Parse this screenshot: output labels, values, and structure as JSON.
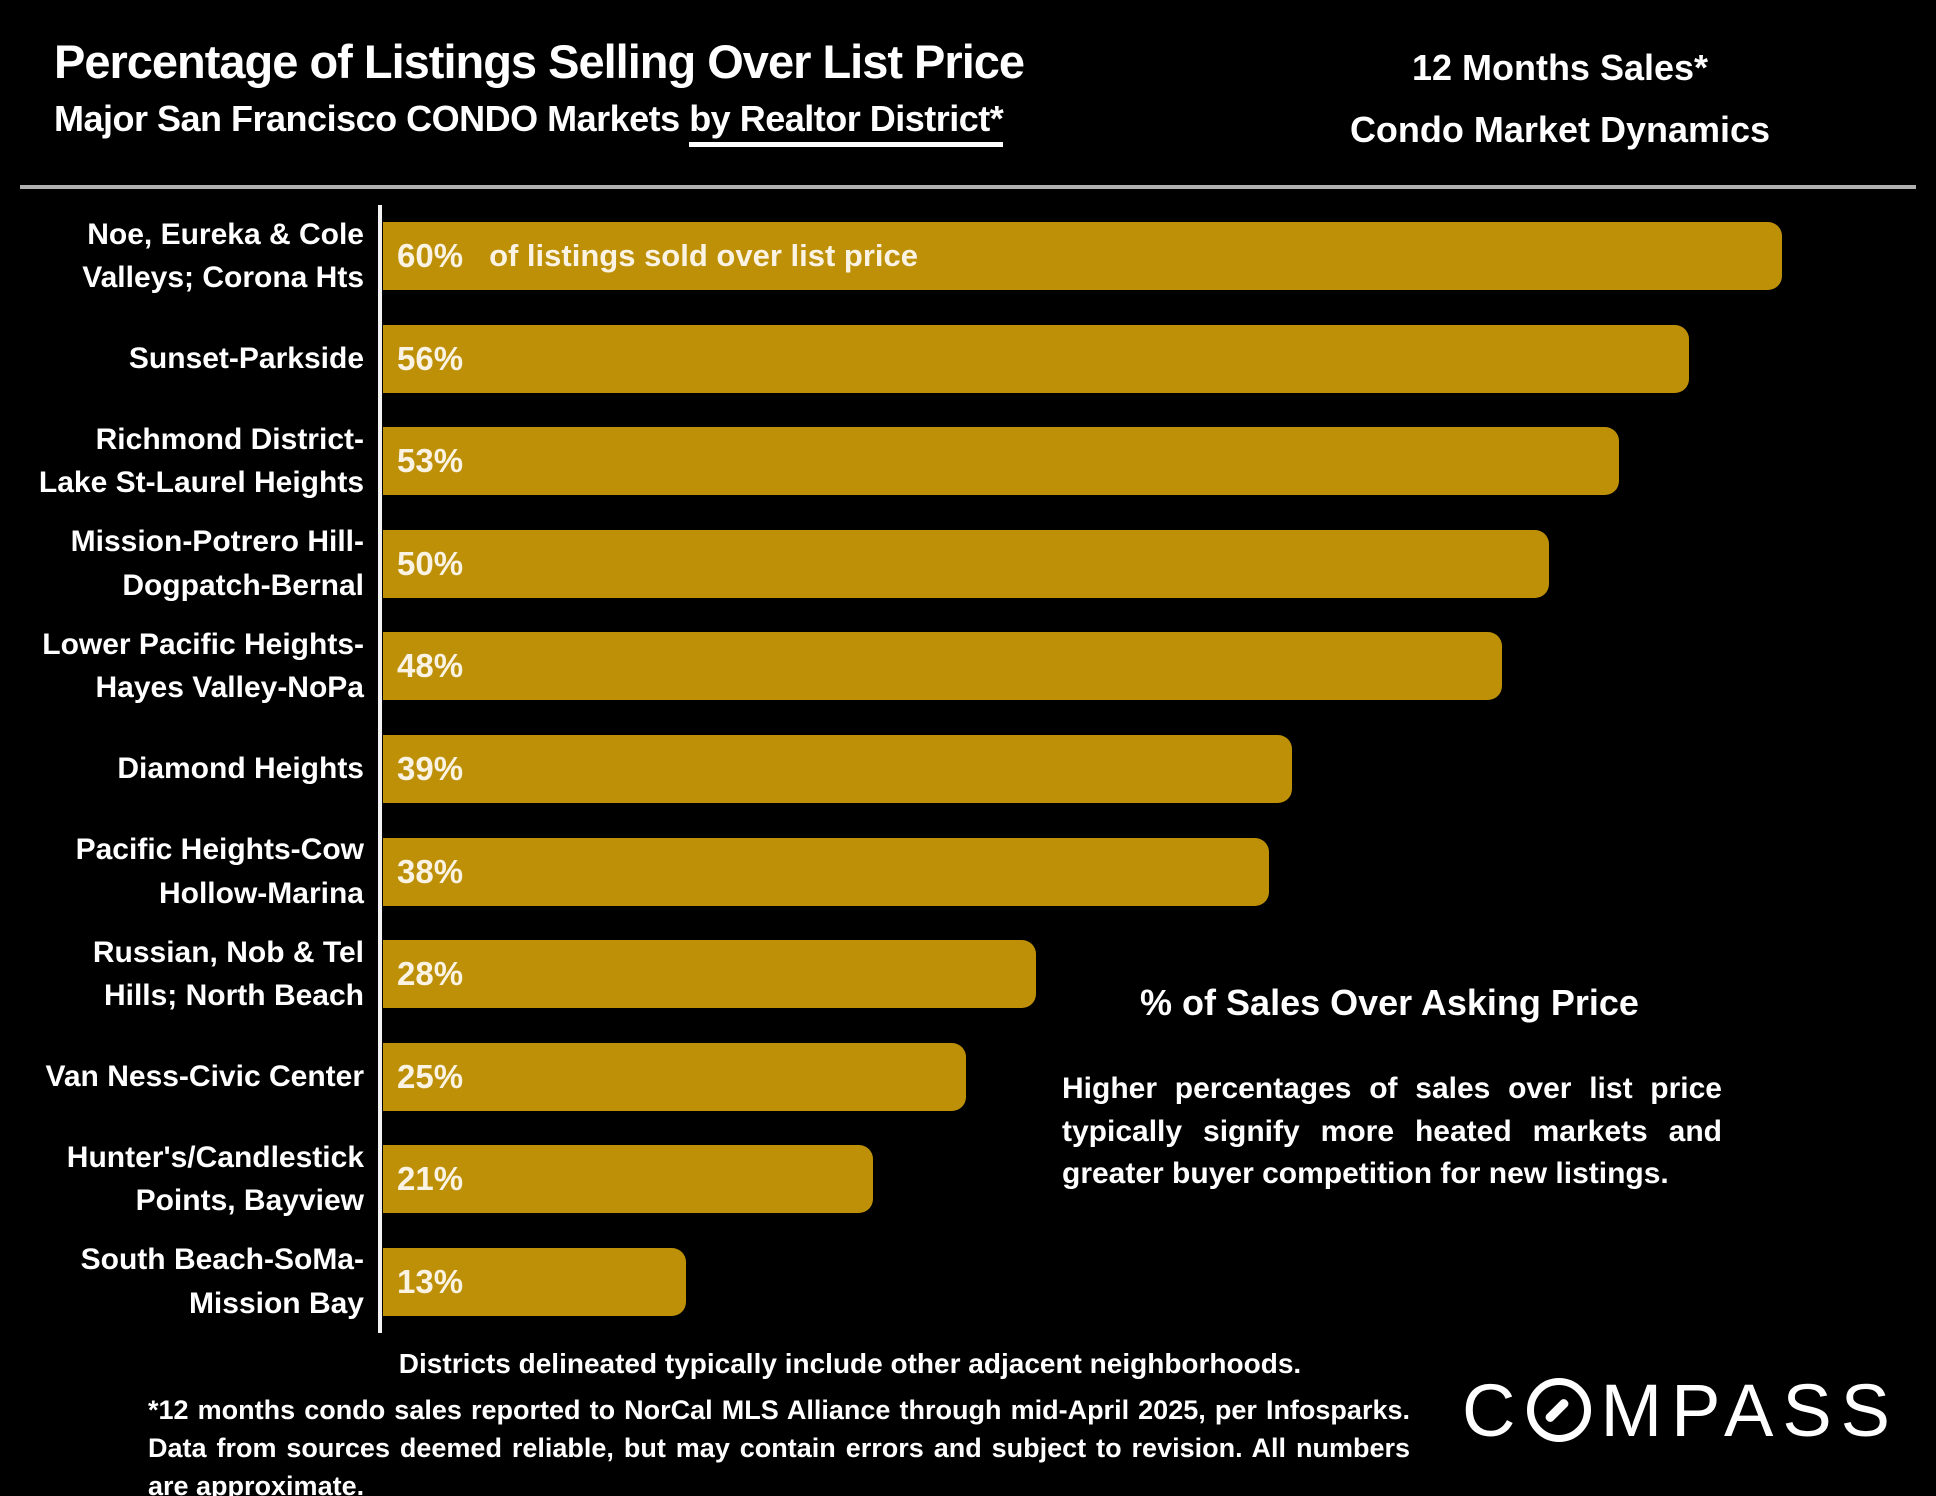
{
  "header": {
    "title": "Percentage of Listings Selling Over List Price",
    "subtitle_prefix": "Major San Francisco CONDO Markets ",
    "subtitle_underlined": "by Realtor District*",
    "right_line1": "12 Months Sales*",
    "right_line2": "Condo Market Dynamics"
  },
  "chart_data": {
    "type": "bar",
    "orientation": "horizontal",
    "title": "Percentage of Listings Selling Over List Price",
    "categories": [
      "Noe, Eureka & Cole Valleys; Corona Hts",
      "Sunset-Parkside",
      "Richmond District-Lake St-Laurel Heights",
      "Mission-Potrero Hill-Dogpatch-Bernal",
      "Lower Pacific Heights-Hayes Valley-NoPa",
      "Diamond Heights",
      "Pacific Heights-Cow Hollow-Marina",
      "Russian, Nob & Tel Hills; North Beach",
      "Van Ness-Civic Center",
      "Hunter's/Candlestick Points, Bayview",
      "South Beach-SoMa-Mission Bay"
    ],
    "label_lines": [
      [
        "Noe, Eureka & Cole",
        "Valleys; Corona Hts"
      ],
      [
        "Sunset-Parkside"
      ],
      [
        "Richmond District-",
        "Lake St-Laurel Heights"
      ],
      [
        "Mission-Potrero Hill-",
        "Dogpatch-Bernal"
      ],
      [
        "Lower Pacific Heights-",
        "Hayes Valley-NoPa"
      ],
      [
        "Diamond Heights"
      ],
      [
        "Pacific Heights-Cow",
        "Hollow-Marina"
      ],
      [
        "Russian, Nob & Tel",
        "Hills; North Beach"
      ],
      [
        "Van Ness-Civic Center"
      ],
      [
        "Hunter's/Candlestick",
        "Points, Bayview"
      ],
      [
        "South Beach-SoMa-",
        "Mission Bay"
      ]
    ],
    "values": [
      60,
      56,
      53,
      50,
      48,
      39,
      38,
      28,
      25,
      21,
      13
    ],
    "value_suffix": "%",
    "first_bar_note": "of listings sold over list price",
    "xlabel": "",
    "ylabel": "",
    "xlim": [
      0,
      66
    ],
    "grid": false,
    "legend": false,
    "bar_color": "#bd9007",
    "background_color": "#000000"
  },
  "annotation": {
    "heading": "% of Sales Over Asking Price",
    "body": "Higher percentages of sales over list price typically signify more heated markets and greater buyer competition for new listings."
  },
  "footer": {
    "note1": "Districts delineated typically include other adjacent neighborhoods.",
    "note2": "*12 months condo sales reported to NorCal MLS Alliance through mid-April 2025, per Infosparks. Data from sources deemed reliable, but may contain errors and subject to revision. All numbers are approximate.",
    "logo_left": "C",
    "logo_right": "MPASS"
  }
}
